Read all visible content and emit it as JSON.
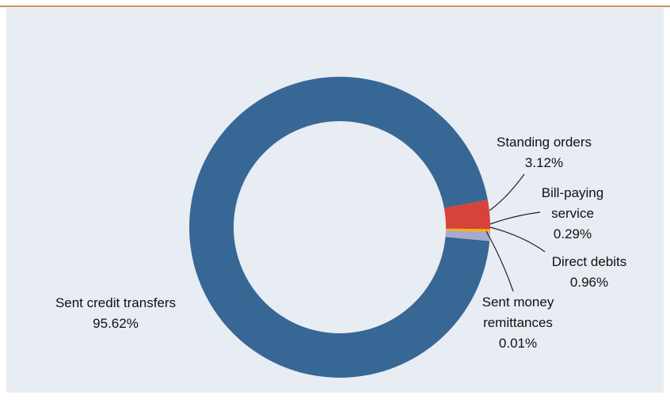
{
  "chart_data": {
    "type": "donut",
    "categories": [
      "Sent credit transfers",
      "Standing orders",
      "Bill-paying service",
      "Direct debits",
      "Sent money remittances"
    ],
    "values": [
      95.62,
      3.12,
      0.29,
      0.96,
      0.01
    ],
    "value_labels": [
      "95.62%",
      "3.12%",
      "0.29%",
      "0.96%",
      "0.01%"
    ],
    "colors": [
      "#376795",
      "#d6433a",
      "#f2b705",
      "#a9a9cf",
      "#8c8c8c"
    ]
  }
}
